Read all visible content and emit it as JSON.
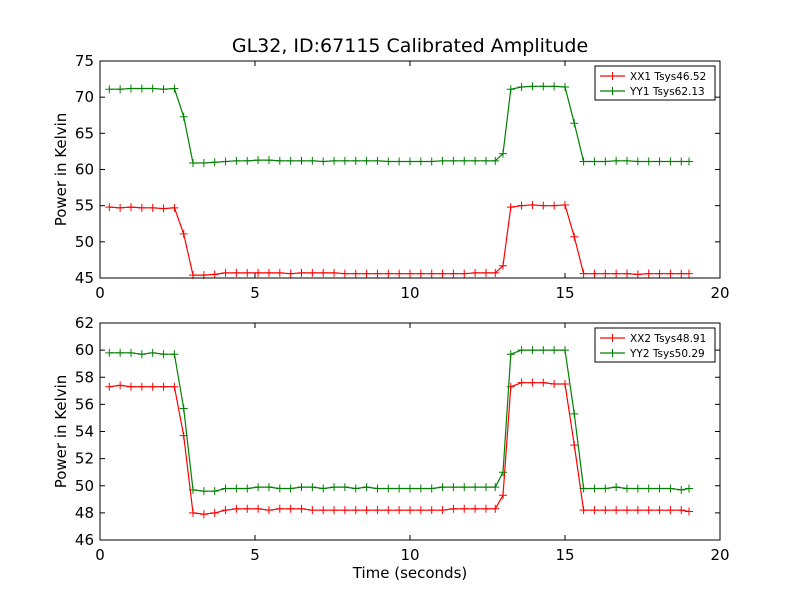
{
  "figure": {
    "title": "GL32, ID:67115 Calibrated Amplitude"
  },
  "chart_data": [
    {
      "type": "line",
      "title": "GL32, ID:67115 Calibrated Amplitude",
      "xlabel": "",
      "ylabel": "Power in Kelvin",
      "xlim": [
        0,
        20
      ],
      "ylim": [
        45,
        75
      ],
      "xticks": [
        "0",
        "5",
        "10",
        "15",
        "20"
      ],
      "yticks": [
        "45",
        "50",
        "55",
        "60",
        "65",
        "70",
        "75"
      ],
      "legend_position": "top-right",
      "grid": false,
      "x": [
        0.3,
        0.65,
        1.0,
        1.35,
        1.7,
        2.05,
        2.4,
        2.7,
        3.0,
        3.35,
        3.7,
        4.05,
        4.4,
        4.75,
        5.1,
        5.45,
        5.8,
        6.15,
        6.5,
        6.85,
        7.2,
        7.55,
        7.9,
        8.25,
        8.6,
        8.95,
        9.3,
        9.65,
        10.0,
        10.35,
        10.7,
        11.05,
        11.4,
        11.75,
        12.1,
        12.45,
        12.75,
        13.0,
        13.25,
        13.6,
        13.95,
        14.3,
        14.65,
        15.0,
        15.3,
        15.6,
        15.95,
        16.3,
        16.65,
        17.0,
        17.35,
        17.7,
        18.05,
        18.4,
        18.75,
        19.0
      ],
      "series": [
        {
          "name": "XX1 Tsys46.52",
          "color": "#ff0000",
          "values": [
            54.8,
            54.7,
            54.8,
            54.7,
            54.7,
            54.6,
            54.7,
            51.1,
            45.4,
            45.4,
            45.5,
            45.7,
            45.7,
            45.7,
            45.7,
            45.7,
            45.7,
            45.6,
            45.7,
            45.7,
            45.7,
            45.7,
            45.6,
            45.6,
            45.6,
            45.6,
            45.6,
            45.6,
            45.6,
            45.6,
            45.6,
            45.6,
            45.6,
            45.6,
            45.7,
            45.7,
            45.7,
            46.7,
            54.8,
            55.0,
            55.1,
            55.0,
            55.0,
            55.1,
            50.7,
            45.6,
            45.6,
            45.6,
            45.6,
            45.6,
            45.5,
            45.6,
            45.6,
            45.6,
            45.6,
            45.6
          ]
        },
        {
          "name": "YY1 Tsys62.13",
          "color": "#008000",
          "values": [
            71.1,
            71.1,
            71.2,
            71.2,
            71.2,
            71.1,
            71.2,
            67.3,
            60.9,
            60.9,
            61.0,
            61.1,
            61.2,
            61.2,
            61.3,
            61.3,
            61.2,
            61.2,
            61.2,
            61.2,
            61.1,
            61.2,
            61.2,
            61.2,
            61.2,
            61.2,
            61.1,
            61.1,
            61.1,
            61.1,
            61.1,
            61.2,
            61.2,
            61.2,
            61.2,
            61.2,
            61.2,
            62.2,
            71.1,
            71.4,
            71.5,
            71.5,
            71.5,
            71.4,
            66.4,
            61.1,
            61.1,
            61.1,
            61.2,
            61.2,
            61.1,
            61.1,
            61.1,
            61.1,
            61.1,
            61.1
          ]
        }
      ]
    },
    {
      "type": "line",
      "title": "",
      "xlabel": "Time (seconds)",
      "ylabel": "Power in Kelvin",
      "xlim": [
        0,
        20
      ],
      "ylim": [
        46,
        62
      ],
      "xticks": [
        "0",
        "5",
        "10",
        "15",
        "20"
      ],
      "yticks": [
        "46",
        "48",
        "50",
        "52",
        "54",
        "56",
        "58",
        "60",
        "62"
      ],
      "legend_position": "top-right",
      "grid": false,
      "x": [
        0.3,
        0.65,
        1.0,
        1.35,
        1.7,
        2.05,
        2.4,
        2.7,
        3.0,
        3.35,
        3.7,
        4.05,
        4.4,
        4.75,
        5.1,
        5.45,
        5.8,
        6.15,
        6.5,
        6.85,
        7.2,
        7.55,
        7.9,
        8.25,
        8.6,
        8.95,
        9.3,
        9.65,
        10.0,
        10.35,
        10.7,
        11.05,
        11.4,
        11.75,
        12.1,
        12.45,
        12.75,
        13.0,
        13.25,
        13.6,
        13.95,
        14.3,
        14.65,
        15.0,
        15.3,
        15.6,
        15.95,
        16.3,
        16.65,
        17.0,
        17.35,
        17.7,
        18.05,
        18.4,
        18.75,
        19.0
      ],
      "series": [
        {
          "name": "XX2 Tsys48.91",
          "color": "#ff0000",
          "values": [
            57.3,
            57.4,
            57.3,
            57.3,
            57.3,
            57.3,
            57.3,
            53.7,
            48.0,
            47.9,
            48.0,
            48.2,
            48.3,
            48.3,
            48.3,
            48.2,
            48.3,
            48.3,
            48.3,
            48.2,
            48.2,
            48.2,
            48.2,
            48.2,
            48.2,
            48.2,
            48.2,
            48.2,
            48.2,
            48.2,
            48.2,
            48.2,
            48.3,
            48.3,
            48.3,
            48.3,
            48.3,
            49.3,
            57.3,
            57.6,
            57.6,
            57.6,
            57.5,
            57.5,
            53.0,
            48.2,
            48.2,
            48.2,
            48.2,
            48.2,
            48.2,
            48.2,
            48.2,
            48.2,
            48.2,
            48.1
          ]
        },
        {
          "name": "YY2 Tsys50.29",
          "color": "#008000",
          "values": [
            59.8,
            59.8,
            59.8,
            59.7,
            59.8,
            59.7,
            59.7,
            55.7,
            49.7,
            49.6,
            49.6,
            49.8,
            49.8,
            49.8,
            49.9,
            49.9,
            49.8,
            49.8,
            49.9,
            49.9,
            49.8,
            49.9,
            49.9,
            49.8,
            49.9,
            49.8,
            49.8,
            49.8,
            49.8,
            49.8,
            49.8,
            49.9,
            49.9,
            49.9,
            49.9,
            49.9,
            49.9,
            51.0,
            59.7,
            60.0,
            60.0,
            60.0,
            60.0,
            60.0,
            55.3,
            49.8,
            49.8,
            49.8,
            49.9,
            49.8,
            49.8,
            49.8,
            49.8,
            49.8,
            49.7,
            49.8
          ]
        }
      ]
    }
  ]
}
